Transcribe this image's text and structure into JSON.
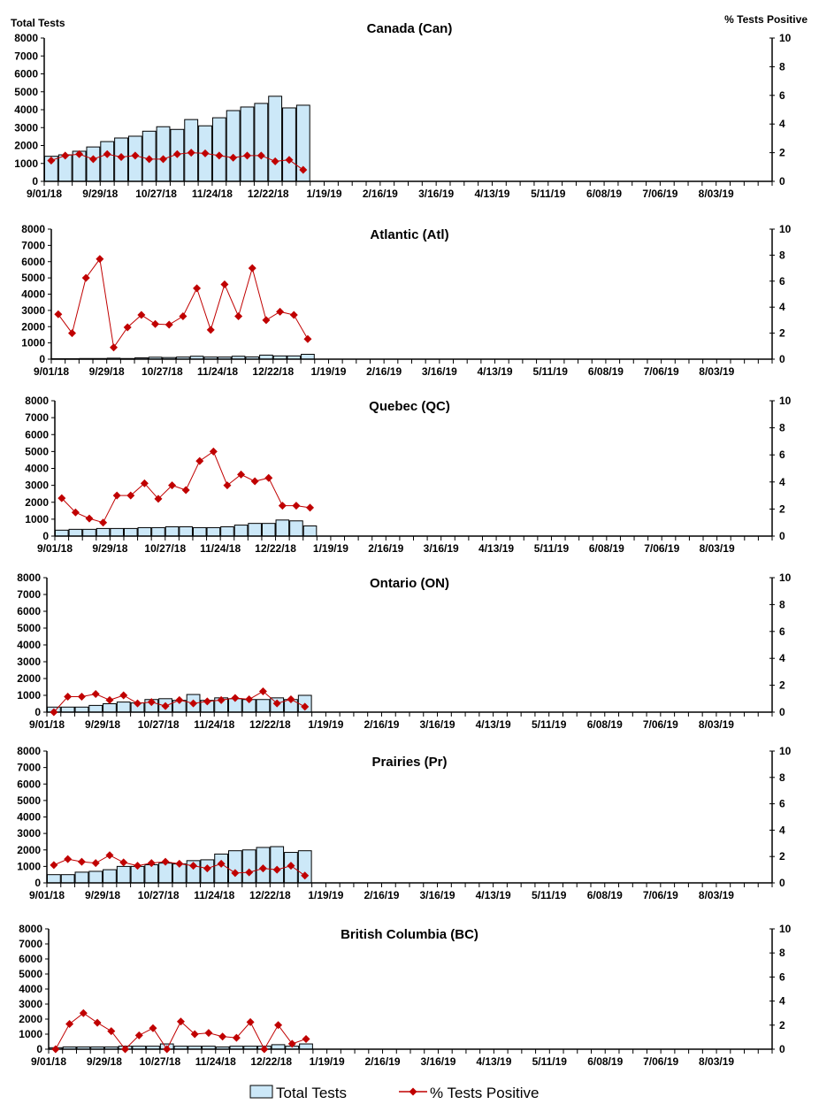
{
  "chart_data": {
    "type": "bar+line",
    "left_axis_label": "Total Tests",
    "right_axis_label": "% Tests Positive",
    "left_ylim": [
      0,
      8000
    ],
    "left_yticks": [
      "0",
      "1000",
      "2000",
      "3000",
      "4000",
      "5000",
      "6000",
      "7000",
      "8000"
    ],
    "right_ylim": [
      0,
      10
    ],
    "right_yticks": [
      "0",
      "2",
      "4",
      "6",
      "8",
      "10"
    ],
    "xtick_labels": [
      "9/01/18",
      "9/29/18",
      "10/27/18",
      "11/24/18",
      "12/22/18",
      "1/19/19",
      "2/16/19",
      "3/16/19",
      "4/13/19",
      "5/11/19",
      "6/08/19",
      "7/06/19",
      "8/03/19"
    ],
    "weeks_on_axis": 52,
    "grid": false,
    "legend": {
      "position": "bottom",
      "entries": [
        "Total Tests",
        "% Tests Positive"
      ]
    },
    "colors": {
      "bars": "#cce8f8",
      "bar_edge": "#000000",
      "line": "#c00000"
    },
    "panels": [
      {
        "title": "Canada (Can)",
        "total_tests": [
          1400,
          1480,
          1680,
          1920,
          2220,
          2420,
          2520,
          2800,
          3050,
          2900,
          3450,
          3100,
          3550,
          3950,
          4150,
          4350,
          4750,
          4100,
          4250
        ],
        "pct_positive": [
          1.45,
          1.8,
          1.9,
          1.55,
          1.9,
          1.7,
          1.8,
          1.55,
          1.55,
          1.9,
          2.0,
          1.95,
          1.8,
          1.65,
          1.8,
          1.8,
          1.4,
          1.5,
          0.8
        ]
      },
      {
        "title": "Atlantic (Atl)",
        "total_tests": [
          30,
          30,
          40,
          40,
          60,
          40,
          80,
          120,
          100,
          130,
          180,
          130,
          130,
          180,
          140,
          250,
          200,
          200,
          300
        ],
        "pct_positive": [
          3.45,
          2.0,
          6.25,
          7.7,
          0.9,
          2.45,
          3.4,
          2.7,
          2.65,
          3.3,
          5.45,
          2.25,
          5.75,
          3.3,
          7.0,
          3.0,
          3.65,
          3.4,
          1.55
        ]
      },
      {
        "title": "Quebec (QC)",
        "total_tests": [
          350,
          400,
          400,
          450,
          450,
          450,
          500,
          500,
          550,
          550,
          500,
          500,
          550,
          650,
          750,
          750,
          950,
          900,
          600
        ],
        "pct_positive": [
          2.8,
          1.75,
          1.3,
          1.0,
          3.0,
          3.0,
          3.9,
          2.75,
          3.75,
          3.4,
          5.55,
          6.25,
          3.75,
          4.55,
          4.05,
          4.3,
          2.25,
          2.25,
          2.1
        ]
      },
      {
        "title": "Ontario (ON)",
        "total_tests": [
          300,
          300,
          300,
          400,
          500,
          600,
          550,
          750,
          800,
          700,
          1050,
          700,
          850,
          800,
          750,
          750,
          850,
          750,
          1000
        ],
        "pct_positive": [
          0,
          1.15,
          1.15,
          1.35,
          0.9,
          1.25,
          0.65,
          0.75,
          0.45,
          0.9,
          0.65,
          0.8,
          0.9,
          1.05,
          0.95,
          1.55,
          0.65,
          0.95,
          0.4
        ]
      },
      {
        "title": "Prairies (Pr)",
        "total_tests": [
          500,
          500,
          650,
          700,
          800,
          1000,
          1000,
          1100,
          1200,
          1150,
          1350,
          1400,
          1750,
          1950,
          2000,
          2150,
          2200,
          1850,
          1950
        ],
        "pct_positive": [
          1.35,
          1.8,
          1.6,
          1.5,
          2.1,
          1.55,
          1.3,
          1.5,
          1.6,
          1.45,
          1.3,
          1.1,
          1.45,
          0.75,
          0.8,
          1.1,
          1.0,
          1.3,
          0.55
        ]
      },
      {
        "title": "British Columbia (BC)",
        "total_tests": [
          100,
          150,
          150,
          150,
          150,
          200,
          200,
          200,
          350,
          200,
          200,
          200,
          150,
          200,
          200,
          200,
          300,
          200,
          350
        ],
        "pct_positive": [
          0,
          2.1,
          3.0,
          2.2,
          1.5,
          0,
          1.15,
          1.75,
          0,
          2.3,
          1.25,
          1.35,
          1.05,
          0.95,
          2.25,
          0,
          2.0,
          0.45,
          0.85
        ]
      }
    ]
  }
}
